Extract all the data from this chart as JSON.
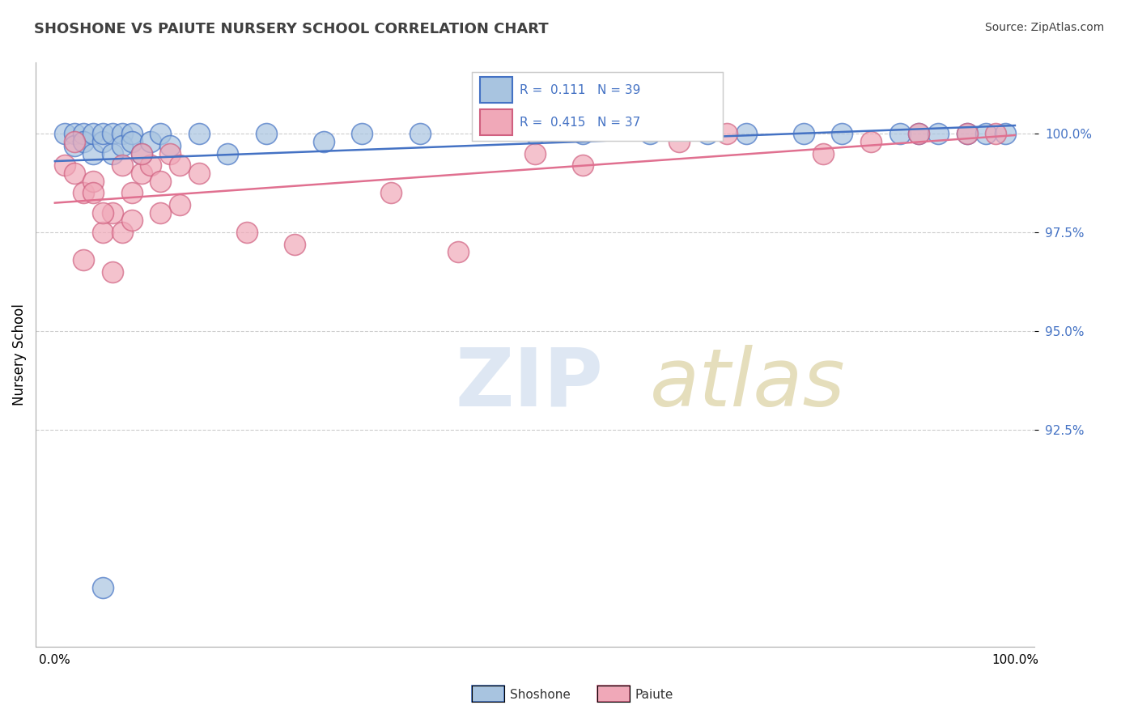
{
  "title": "SHOSHONE VS PAIUTE NURSERY SCHOOL CORRELATION CHART",
  "source": "Source: ZipAtlas.com",
  "ylabel": "Nursery School",
  "shoshone_color": "#a8c4e0",
  "paiute_color": "#f0a8b8",
  "shoshone_line_color": "#4472c4",
  "paiute_line_color": "#e07090",
  "paiute_edge_color": "#d06080",
  "legend_R1": "R =  0.111   N = 39",
  "legend_R2": "R =  0.415   N = 37",
  "shoshone_x": [
    1,
    2,
    2,
    3,
    3,
    4,
    4,
    5,
    5,
    6,
    6,
    7,
    7,
    8,
    8,
    9,
    10,
    11,
    12,
    15,
    18,
    22,
    28,
    32,
    38,
    50,
    55,
    62,
    68,
    72,
    78,
    82,
    88,
    90,
    92,
    95,
    97,
    99,
    5
  ],
  "shoshone_y": [
    100.0,
    100.0,
    99.7,
    100.0,
    99.8,
    99.5,
    100.0,
    99.8,
    100.0,
    100.0,
    99.5,
    100.0,
    99.7,
    100.0,
    99.8,
    99.5,
    99.8,
    100.0,
    99.7,
    100.0,
    99.5,
    100.0,
    99.8,
    100.0,
    100.0,
    100.0,
    100.0,
    100.0,
    100.0,
    100.0,
    100.0,
    100.0,
    100.0,
    100.0,
    100.0,
    100.0,
    100.0,
    100.0,
    88.5
  ],
  "paiute_x": [
    1,
    2,
    3,
    4,
    5,
    6,
    7,
    8,
    9,
    10,
    11,
    12,
    13,
    15,
    20,
    25,
    35,
    42,
    50,
    55,
    65,
    70,
    80,
    85,
    90,
    95,
    98,
    3,
    5,
    7,
    9,
    11,
    13,
    6,
    8,
    4,
    2
  ],
  "paiute_y": [
    99.2,
    99.0,
    98.5,
    98.8,
    97.5,
    98.0,
    99.2,
    98.5,
    99.0,
    99.2,
    98.8,
    99.5,
    98.2,
    99.0,
    97.5,
    97.2,
    98.5,
    97.0,
    99.5,
    99.2,
    99.8,
    100.0,
    99.5,
    99.8,
    100.0,
    100.0,
    100.0,
    96.8,
    98.0,
    97.5,
    99.5,
    98.0,
    99.2,
    96.5,
    97.8,
    98.5,
    99.8
  ],
  "ytick_vals": [
    92.5,
    95.0,
    97.5,
    100.0
  ],
  "xlim": [
    -2,
    102
  ],
  "ylim": [
    87,
    101.8
  ]
}
